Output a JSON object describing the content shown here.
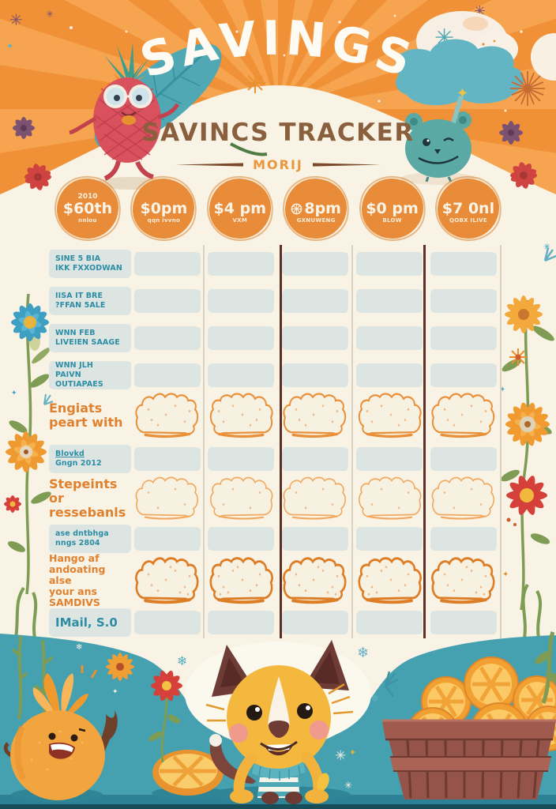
{
  "poster": {
    "title": "SAVINGS",
    "subtitle": "SAVINCS TRACKER",
    "divider_label": "MORIJ"
  },
  "badges": [
    {
      "top_label": "2010",
      "main_label": "$60th",
      "sub_label": "nnlou",
      "icon": null
    },
    {
      "top_label": "",
      "main_label": "$0pm",
      "sub_label": "qqn ivvno",
      "icon": null
    },
    {
      "top_label": "",
      "main_label": "$4 pm",
      "sub_label": "VXM",
      "icon": null
    },
    {
      "top_label": "",
      "main_label": "8pm",
      "sub_label": "GXNUWENG",
      "icon": "orange-slice-icon"
    },
    {
      "top_label": "",
      "main_label": "$0 pm",
      "sub_label": "BLOW",
      "icon": null
    },
    {
      "top_label": "",
      "main_label": "$7 0nl",
      "sub_label": "QOBX ILIVE",
      "icon": null
    }
  ],
  "table": {
    "columns": 5,
    "rows": [
      {
        "label_lines": [
          "SINE 5 BIA",
          "IKK FXXODWAN"
        ],
        "label_style": "teal-strip",
        "cell_style": "strip"
      },
      {
        "label_lines": [
          "IISA IT BRE",
          "?FFAN 5ALE"
        ],
        "label_style": "teal-strip",
        "cell_style": "strip"
      },
      {
        "label_lines": [
          "WNN FEB",
          "LIVEIEN SAAGE"
        ],
        "label_style": "teal-strip",
        "cell_style": "strip"
      },
      {
        "label_lines": [
          "WNN JLH",
          "PAIVN OUTIAPAES"
        ],
        "label_style": "teal-strip",
        "cell_style": "strip"
      },
      {
        "label_lines": [
          "Engiats",
          "peart with"
        ],
        "label_style": "orange",
        "cell_style": "cloud"
      },
      {
        "label_lines": [
          "Blovkd",
          "Gngn 2012"
        ],
        "label_style": "teal-strip",
        "cell_style": "strip",
        "underline_first": true
      },
      {
        "label_lines": [
          "Stepeints or",
          "ressebanls"
        ],
        "label_style": "orange",
        "cell_style": "cloud-light"
      },
      {
        "label_lines": [
          "ase dntbhga",
          "nngs 2804"
        ],
        "label_style": "teal-strip",
        "cell_style": "strip"
      },
      {
        "label_lines": [
          "Hango af",
          "andoating alse",
          "your ans",
          "SAMDIVS"
        ],
        "label_style": "orange",
        "cell_style": "cloud-bold"
      },
      {
        "label_lines": [
          "IMail, S.0"
        ],
        "label_style": "teal-strip-big",
        "cell_style": "strip"
      }
    ]
  },
  "decorations": {
    "top_left": [
      "feather-leaf-icon",
      "pineapple-character",
      "purple-flower-icon",
      "red-flower-icon",
      "star-icons"
    ],
    "top_right": [
      "snow-puff-icon",
      "teal-cloud-icon",
      "teal-monster-character",
      "firework-star-icon",
      "purple-flower-icon",
      "red-flower-icon"
    ],
    "left_border": [
      "blue-flower-icon",
      "orange-flower-icon",
      "small-red-flower-icon",
      "stem-leaves-icon"
    ],
    "right_border": [
      "yellow-flower-icon",
      "orange-starburst-flower-icon",
      "orange-daisy-icon",
      "red-flower-icon",
      "stem-leaves-icon"
    ],
    "bottom": [
      "orange-fruit-character",
      "orange-slice-icon",
      "red-flower-icon",
      "orange-daisy-icon",
      "puppy-character",
      "basket-of-orange-slices",
      "plant-icon",
      "snowflake-icons",
      "sparkle-icons"
    ]
  },
  "colors": {
    "header_orange": "#f09138",
    "header_ray": "#f6a44f",
    "cream": "#f8f3e5",
    "badge_orange": "#e98c3a",
    "teal_text": "#2d8da4",
    "strip_fill": "#dce5e2",
    "orange_text": "#e0812f",
    "title_white": "#fdfbf3",
    "subtitle_brown": "#8a5f3e",
    "divider_label_orange": "#e8973c",
    "bottom_teal": "#46a1b1",
    "dark_divider_line": "#5d2f24",
    "basket_brown": "#945449",
    "puppy_yellow": "#f5b83f"
  }
}
